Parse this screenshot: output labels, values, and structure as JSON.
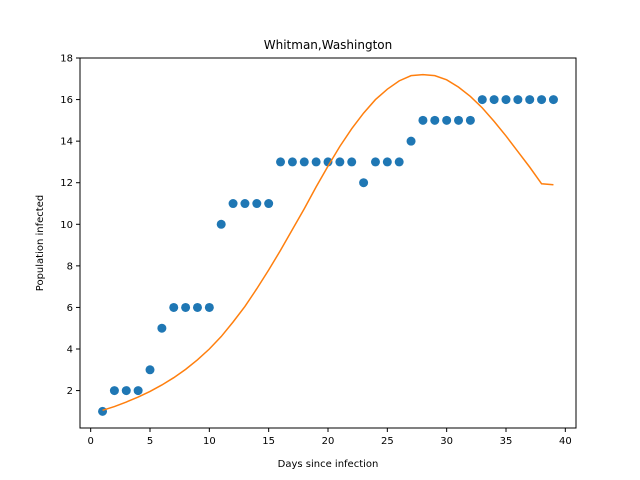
{
  "chart_data": {
    "type": "scatter",
    "title": "Whitman,Washington",
    "xlabel": "Days since infection",
    "ylabel": "Population infected",
    "xlim": [
      -0.9,
      40.9
    ],
    "ylim": [
      0.2,
      18.0
    ],
    "x_ticks": [
      0,
      5,
      10,
      15,
      20,
      25,
      30,
      35,
      40
    ],
    "y_ticks": [
      2,
      4,
      6,
      8,
      10,
      12,
      14,
      16,
      18
    ],
    "grid": false,
    "legend": "none",
    "series": [
      {
        "kind": "scatter",
        "color": "#1f77b4",
        "x": [
          1,
          2,
          3,
          4,
          5,
          6,
          7,
          8,
          9,
          10,
          11,
          12,
          13,
          14,
          15,
          16,
          17,
          18,
          19,
          20,
          21,
          22,
          23,
          24,
          25,
          26,
          27,
          28,
          29,
          30,
          31,
          32,
          33,
          34,
          35,
          36,
          37,
          38,
          39
        ],
        "y": [
          1,
          2,
          2,
          2,
          3,
          5,
          6,
          6,
          6,
          6,
          10,
          11,
          11,
          11,
          11,
          13,
          13,
          13,
          13,
          13,
          13,
          13,
          12,
          13,
          13,
          13,
          14,
          15,
          15,
          15,
          15,
          15,
          16,
          16,
          16,
          16,
          16,
          16,
          16
        ]
      },
      {
        "kind": "line",
        "color": "#ff7f0e",
        "x": [
          1,
          2,
          3,
          4,
          5,
          6,
          7,
          8,
          9,
          10,
          11,
          12,
          13,
          14,
          15,
          16,
          17,
          18,
          19,
          20,
          21,
          22,
          23,
          24,
          25,
          26,
          27,
          28,
          29,
          30,
          31,
          32,
          33,
          34,
          35,
          36,
          37,
          38,
          39
        ],
        "y": [
          1.05,
          1.23,
          1.45,
          1.69,
          1.96,
          2.27,
          2.62,
          3.02,
          3.48,
          4.0,
          4.6,
          5.3,
          6.05,
          6.9,
          7.8,
          8.75,
          9.75,
          10.75,
          11.8,
          12.8,
          13.75,
          14.6,
          15.35,
          16.0,
          16.5,
          16.9,
          17.15,
          17.2,
          17.15,
          16.95,
          16.6,
          16.15,
          15.6,
          14.95,
          14.25,
          13.5,
          12.75,
          11.95,
          11.9
        ]
      }
    ]
  }
}
